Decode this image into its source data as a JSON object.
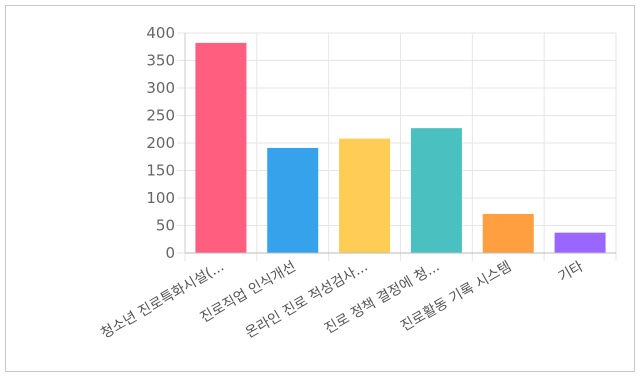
{
  "chart_data": {
    "type": "bar",
    "categories": [
      "청소년 진로특화시설(...",
      "진로직업 인식개선",
      "온라인 진로 적성검사...",
      "진로 정책 결정에 청...",
      "진로활동 기록 시스템",
      "기타"
    ],
    "values": [
      382,
      191,
      208,
      227,
      71,
      37
    ],
    "colors": [
      "#ff5e7e",
      "#36a2eb",
      "#ffcd56",
      "#4bc0c0",
      "#ff9f40",
      "#9966ff"
    ],
    "ylim": [
      0,
      400
    ],
    "yticks": [
      "0",
      "50",
      "100",
      "150",
      "200",
      "250",
      "300",
      "350",
      "400"
    ],
    "grid": true,
    "legend": "none"
  }
}
